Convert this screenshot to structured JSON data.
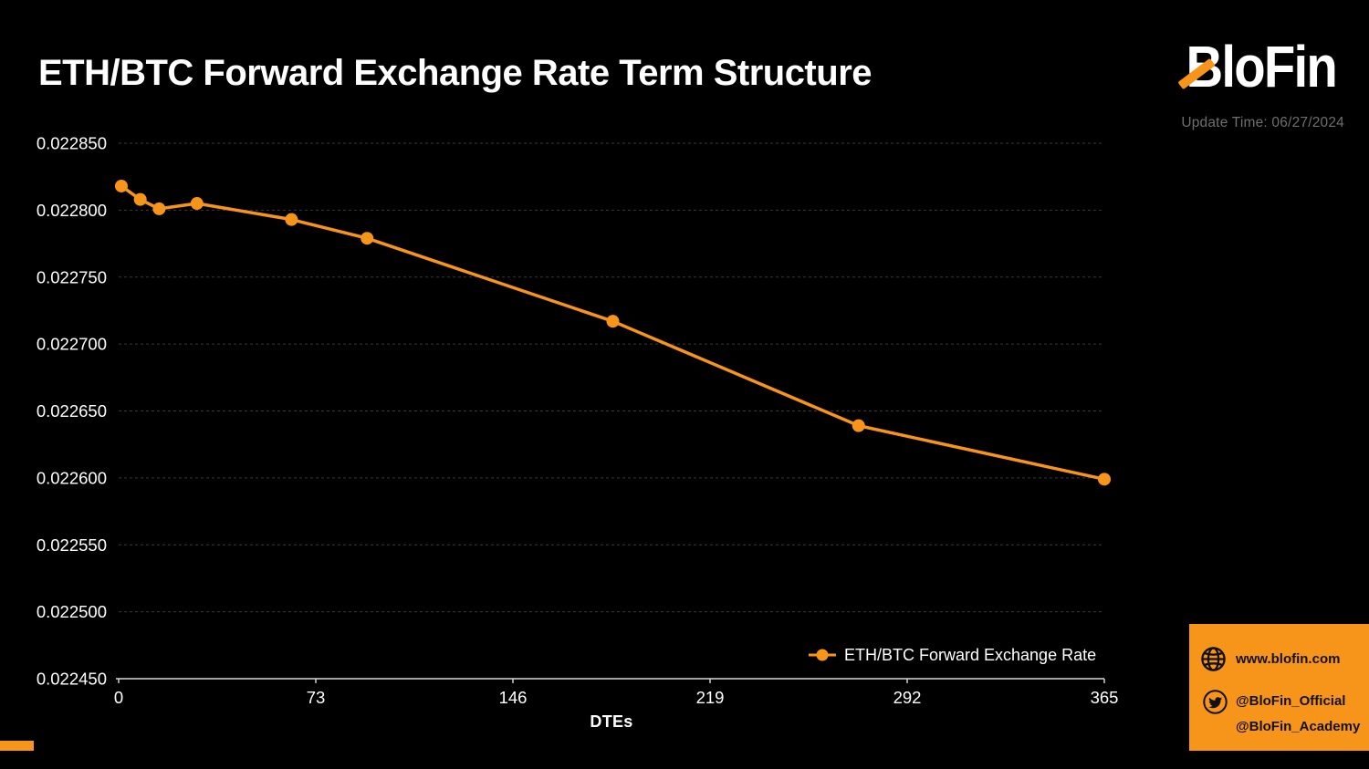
{
  "page": {
    "background": "#000000",
    "accent": "#F7941A"
  },
  "header": {
    "title": "ETH/BTC Forward Exchange Rate Term Structure",
    "brand": "BloFin",
    "update_time": "Update Time: 06/27/2024"
  },
  "chart_data": {
    "type": "line",
    "title": "ETH/BTC Forward Exchange Rate Term Structure",
    "xlabel": "DTEs",
    "ylabel": "",
    "x": [
      1,
      8,
      15,
      29,
      64,
      92,
      183,
      274,
      365
    ],
    "series": [
      {
        "name": "ETH/BTC Forward Exchange Rate",
        "values": [
          0.022818,
          0.022808,
          0.022801,
          0.022805,
          0.022793,
          0.022779,
          0.022717,
          0.022639,
          0.022599
        ]
      }
    ],
    "xlim": [
      0,
      365
    ],
    "ylim": [
      0.02245,
      0.02285
    ],
    "xticks": [
      0,
      73,
      146,
      219,
      292,
      365
    ],
    "yticks": [
      0.02285,
      0.0228,
      0.02275,
      0.0227,
      0.02265,
      0.0226,
      0.02255,
      0.0225,
      0.02245
    ],
    "ytick_labels": [
      "0.022850",
      "0.022800",
      "0.022750",
      "0.022700",
      "0.022650",
      "0.022600",
      "0.022550",
      "0.022500",
      "0.022450"
    ],
    "grid": true,
    "legend_position": "lower right",
    "line_color": "#F7941A",
    "marker_radius": 7,
    "line_width": 3.5,
    "grid_color": "#3a3a3a",
    "axis_color": "#d9d9d9",
    "tick_label_color": "#ffffff"
  },
  "footer": {
    "website": "www.blofin.com",
    "twitter_official": "@BloFin_Official",
    "twitter_academy": "@BloFin_Academy"
  }
}
